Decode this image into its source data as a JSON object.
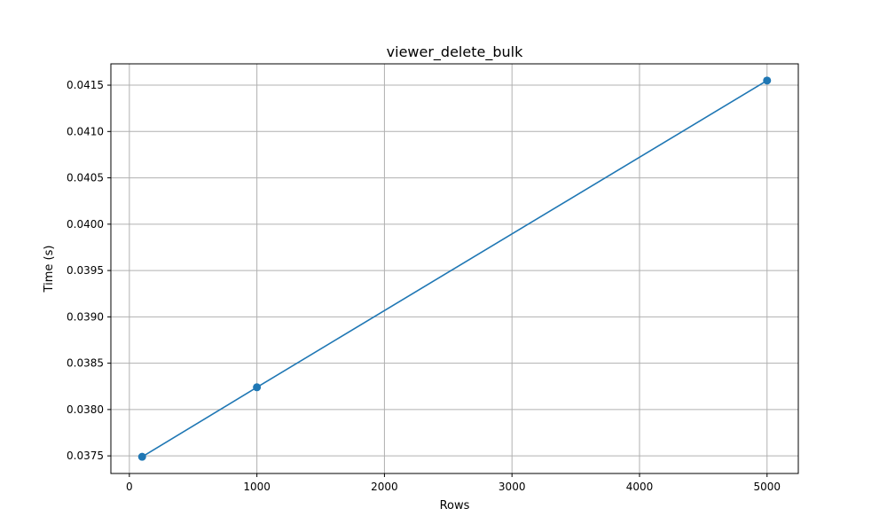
{
  "chart_data": {
    "type": "line",
    "title": "viewer_delete_bulk",
    "xlabel": "Rows",
    "ylabel": "Time (s)",
    "x": [
      100,
      1000,
      5000
    ],
    "series": [
      {
        "values": [
          0.03749,
          0.03824,
          0.04155
        ],
        "color": "#1f77b4",
        "marker": "circle"
      }
    ],
    "xlim": [
      -145,
      5245
    ],
    "ylim": [
      0.03731,
      0.04173
    ],
    "xticks": [
      0,
      1000,
      2000,
      3000,
      4000,
      5000
    ],
    "xtick_labels": [
      "0",
      "1000",
      "2000",
      "3000",
      "4000",
      "5000"
    ],
    "yticks": [
      0.0375,
      0.038,
      0.0385,
      0.039,
      0.0395,
      0.04,
      0.0405,
      0.041,
      0.0415
    ],
    "ytick_labels": [
      "0.0375",
      "0.0380",
      "0.0385",
      "0.0390",
      "0.0395",
      "0.0400",
      "0.0405",
      "0.0410",
      "0.0415"
    ],
    "grid": true,
    "colors": {
      "grid": "#b0b0b0",
      "axes": "#000000"
    }
  }
}
